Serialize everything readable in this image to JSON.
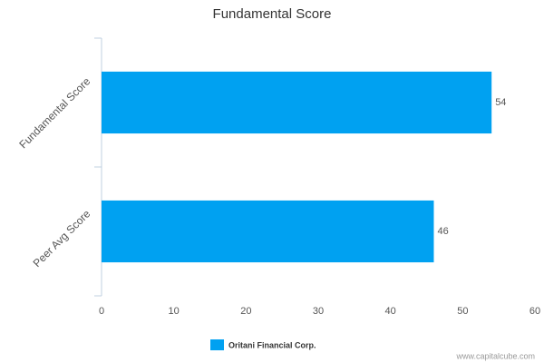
{
  "chart_data": {
    "type": "hbar",
    "title": "Fundamental Score",
    "categories": [
      "Fundamental Score",
      "Peer Avg Score"
    ],
    "series": [
      {
        "name": "Oritani Financial Corp.",
        "color": "#00a1f1",
        "values": [
          54,
          46
        ]
      }
    ],
    "xlim": [
      0,
      60
    ],
    "xticks": [
      0,
      10,
      20,
      30,
      40,
      50,
      60
    ],
    "grid": false,
    "legend": "bottom",
    "watermark": "www.capitalcube.com"
  }
}
